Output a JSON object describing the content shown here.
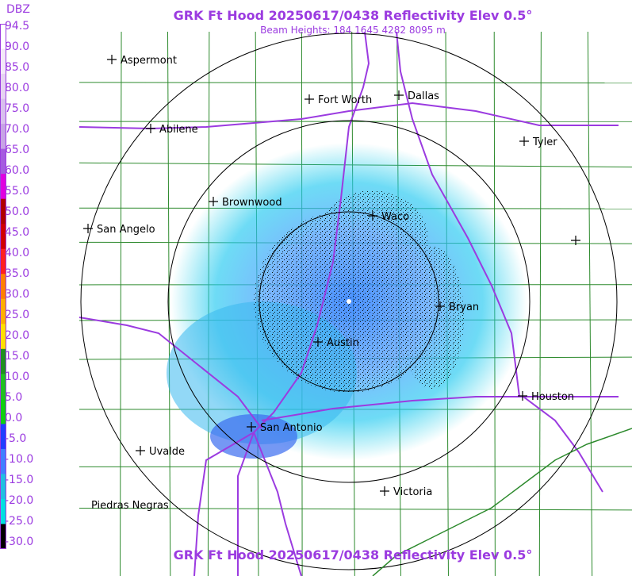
{
  "header": {
    "title": "GRK Ft Hood 20250617/0438 Reflectivity Elev 0.5°",
    "subtitle": "Beam Heights: 184 1645 4282 8095 m",
    "footer_title": "GRK Ft Hood 20250617/0438 Reflectivity Elev 0.5°"
  },
  "legend": {
    "unit": "DBZ",
    "values": [
      "94.5",
      "90.0",
      "85.0",
      "80.0",
      "75.0",
      "70.0",
      "65.0",
      "60.0",
      "55.0",
      "50.0",
      "45.0",
      "40.0",
      "35.0",
      "30.0",
      "25.0",
      "20.0",
      "15.0",
      "10.0",
      "5.0",
      "0.0",
      "-5.0",
      "-10.0",
      "-15.0",
      "-20.0",
      "-25.0",
      "-30.0"
    ],
    "colors": [
      "#ffffff",
      "#f3e8f8",
      "#e6d3f2",
      "#d8bfee",
      "#c7a3e6",
      "#a55be0",
      "#e000e0",
      "#b00000",
      "#d00000",
      "#ff2020",
      "#ff8000",
      "#ffb000",
      "#ffe000",
      "#209020",
      "#20c020",
      "#10d010",
      "#2040ff",
      "#4080ff",
      "#20c0e0",
      "#00e0e0",
      "#000000"
    ]
  },
  "cities": [
    {
      "name": "Aspermont"
    },
    {
      "name": "Fort Worth"
    },
    {
      "name": "Dallas"
    },
    {
      "name": "Abilene"
    },
    {
      "name": "Tyler"
    },
    {
      "name": "Brownwood"
    },
    {
      "name": "Waco"
    },
    {
      "name": "San Angelo"
    },
    {
      "name": "Bryan"
    },
    {
      "name": "Austin"
    },
    {
      "name": "Houston"
    },
    {
      "name": "San Antonio"
    },
    {
      "name": "Uvalde"
    },
    {
      "name": "Victoria"
    },
    {
      "name": "Piedras Negras"
    }
  ],
  "colors": {
    "accent": "#9b3be0",
    "highway": "#9b3be0",
    "county": "#2d8a2d",
    "rings": "#000000"
  }
}
